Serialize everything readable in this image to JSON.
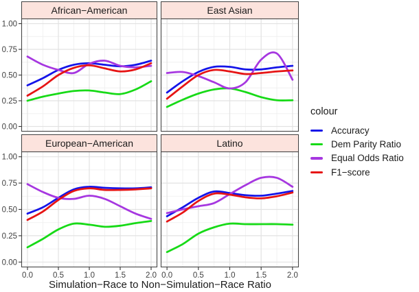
{
  "chart_data": {
    "type": "line",
    "xlabel": "Simulation−Race to Non−Simulation−Race Ratio",
    "legend_title": "colour",
    "legend_position": "right",
    "grid_on": true,
    "xlim": [
      0,
      2
    ],
    "ylim": [
      0,
      1
    ],
    "x": [
      0,
      0.25,
      0.5,
      0.75,
      1,
      1.25,
      1.5,
      1.75,
      2
    ],
    "x_ticks": [
      {
        "v": 0.0,
        "label": "0.0"
      },
      {
        "v": 0.5,
        "label": "0.5"
      },
      {
        "v": 1.0,
        "label": "1.0"
      },
      {
        "v": 1.5,
        "label": "1.5"
      },
      {
        "v": 2.0,
        "label": "2.0"
      }
    ],
    "y_ticks": [
      {
        "v": 1.0,
        "label": "1.00"
      },
      {
        "v": 0.75,
        "label": "0.75"
      },
      {
        "v": 0.5,
        "label": "0.50"
      },
      {
        "v": 0.25,
        "label": "0.25"
      },
      {
        "v": 0.0,
        "label": "0.00"
      }
    ],
    "grid": {
      "x_major": [
        0,
        0.5,
        1,
        1.5,
        2
      ],
      "x_minor": [
        0.25,
        0.75,
        1.25,
        1.75
      ],
      "y_major": [
        0,
        0.25,
        0.5,
        0.75,
        1
      ],
      "y_minor": [
        0.125,
        0.375,
        0.625,
        0.875
      ]
    },
    "series": [
      {
        "name": "Accuracy",
        "color": "#1414E8"
      },
      {
        "name": "Dem Parity Ratio",
        "color": "#17DA17"
      },
      {
        "name": "Equal Odds Ratio",
        "color": "#A637E0"
      },
      {
        "name": "F1−score",
        "color": "#E61414"
      }
    ],
    "facets": [
      {
        "title": "African−American",
        "values": [
          [
            0.4,
            0.47,
            0.55,
            0.6,
            0.615,
            0.6,
            0.585,
            0.6,
            0.64
          ],
          [
            0.25,
            0.29,
            0.32,
            0.345,
            0.35,
            0.33,
            0.315,
            0.36,
            0.44
          ],
          [
            0.68,
            0.6,
            0.55,
            0.52,
            0.61,
            0.64,
            0.59,
            0.575,
            0.59
          ],
          [
            0.3,
            0.39,
            0.5,
            0.57,
            0.595,
            0.565,
            0.535,
            0.555,
            0.615
          ]
        ]
      },
      {
        "title": "East Asian",
        "values": [
          [
            0.33,
            0.44,
            0.53,
            0.58,
            0.58,
            0.555,
            0.555,
            0.575,
            0.59
          ],
          [
            0.19,
            0.26,
            0.32,
            0.36,
            0.37,
            0.335,
            0.285,
            0.255,
            0.255
          ],
          [
            0.52,
            0.53,
            0.49,
            0.43,
            0.37,
            0.43,
            0.65,
            0.71,
            0.455
          ],
          [
            0.27,
            0.39,
            0.5,
            0.55,
            0.535,
            0.51,
            0.52,
            0.535,
            0.545
          ]
        ]
      },
      {
        "title": "European−American",
        "values": [
          [
            0.46,
            0.52,
            0.61,
            0.69,
            0.715,
            0.705,
            0.7,
            0.7,
            0.71
          ],
          [
            0.14,
            0.22,
            0.31,
            0.365,
            0.355,
            0.335,
            0.345,
            0.37,
            0.39
          ],
          [
            0.74,
            0.665,
            0.61,
            0.6,
            0.63,
            0.6,
            0.53,
            0.46,
            0.41
          ],
          [
            0.4,
            0.48,
            0.59,
            0.675,
            0.7,
            0.685,
            0.685,
            0.69,
            0.7
          ]
        ]
      },
      {
        "title": "Latino",
        "values": [
          [
            0.435,
            0.52,
            0.61,
            0.67,
            0.655,
            0.635,
            0.63,
            0.65,
            0.675
          ],
          [
            0.095,
            0.17,
            0.27,
            0.33,
            0.365,
            0.36,
            0.36,
            0.36,
            0.355
          ],
          [
            0.465,
            0.5,
            0.53,
            0.56,
            0.645,
            0.73,
            0.8,
            0.8,
            0.715
          ],
          [
            0.385,
            0.47,
            0.58,
            0.65,
            0.64,
            0.615,
            0.605,
            0.625,
            0.66
          ]
        ]
      }
    ],
    "colors": {
      "strip_fill": "#FCE3DD",
      "strip_border": "#3F3F3F",
      "panel_border": "#454545",
      "grid_major": "#E2E2E2",
      "grid_minor": "#F0F0F0",
      "tick": "#333333",
      "tick_text": "#404040"
    }
  }
}
